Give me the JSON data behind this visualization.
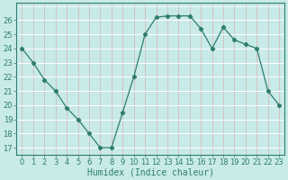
{
  "x": [
    0,
    1,
    2,
    3,
    4,
    5,
    6,
    7,
    8,
    9,
    10,
    11,
    12,
    13,
    14,
    15,
    16,
    17,
    18,
    19,
    20,
    21,
    22,
    23
  ],
  "y": [
    24,
    23,
    21.8,
    21,
    19.8,
    19,
    18,
    17,
    17,
    19.5,
    22,
    25,
    26.2,
    26.3,
    26.3,
    26.3,
    25.4,
    24,
    25.5,
    24.6,
    24.3,
    24,
    21,
    20
  ],
  "line_color": "#2e7d6e",
  "marker": "D",
  "marker_size": 2.2,
  "bg_color": "#c8eae8",
  "grid_white_color": "#ffffff",
  "grid_pink_color": "#d9b0b0",
  "xlabel": "Humidex (Indice chaleur)",
  "xlabel_fontsize": 7,
  "ylim": [
    16.5,
    27.2
  ],
  "xlim": [
    -0.5,
    23.5
  ],
  "yticks": [
    17,
    18,
    19,
    20,
    21,
    22,
    23,
    24,
    25,
    26
  ],
  "xticks": [
    0,
    1,
    2,
    3,
    4,
    5,
    6,
    7,
    8,
    9,
    10,
    11,
    12,
    13,
    14,
    15,
    16,
    17,
    18,
    19,
    20,
    21,
    22,
    23
  ],
  "tick_fontsize": 6
}
